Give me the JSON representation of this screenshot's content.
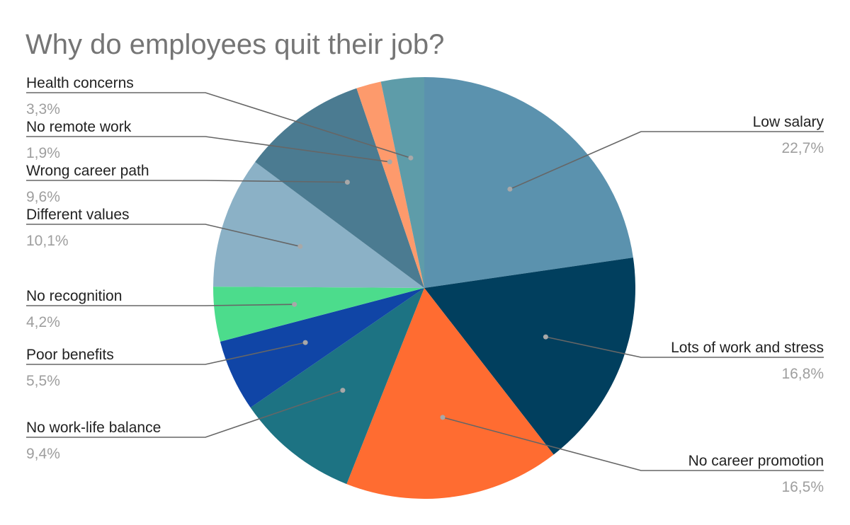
{
  "chart_data": {
    "type": "pie",
    "title": "Why do employees quit their job?",
    "start_angle_deg": 0,
    "direction": "clockwise",
    "slices": [
      {
        "label": "Low salary",
        "value": 22.7,
        "value_text": "22,7%",
        "color": "#5b92ae"
      },
      {
        "label": "Lots of work and stress",
        "value": 16.8,
        "value_text": "16,8%",
        "color": "#013f5e"
      },
      {
        "label": "No career promotion",
        "value": 16.5,
        "value_text": "16,5%",
        "color": "#ff6c31"
      },
      {
        "label": "No work-life balance",
        "value": 9.4,
        "value_text": "9,4%",
        "color": "#1d7383"
      },
      {
        "label": "Poor benefits",
        "value": 5.5,
        "value_text": "5,5%",
        "color": "#1045a6"
      },
      {
        "label": "No recognition",
        "value": 4.2,
        "value_text": "4,2%",
        "color": "#4cdc8c"
      },
      {
        "label": "Different values",
        "value": 10.1,
        "value_text": "10,1%",
        "color": "#8bb1c6"
      },
      {
        "label": "Wrong career path",
        "value": 9.6,
        "value_text": "9,6%",
        "color": "#4b7b91"
      },
      {
        "label": "No remote work",
        "value": 1.9,
        "value_text": "1,9%",
        "color": "#fd9a6c"
      },
      {
        "label": "Health concerns",
        "value": 3.3,
        "value_text": "3,3%",
        "color": "#5e9ca9"
      }
    ],
    "legend": "none",
    "data_labels": "outside with leader lines"
  }
}
